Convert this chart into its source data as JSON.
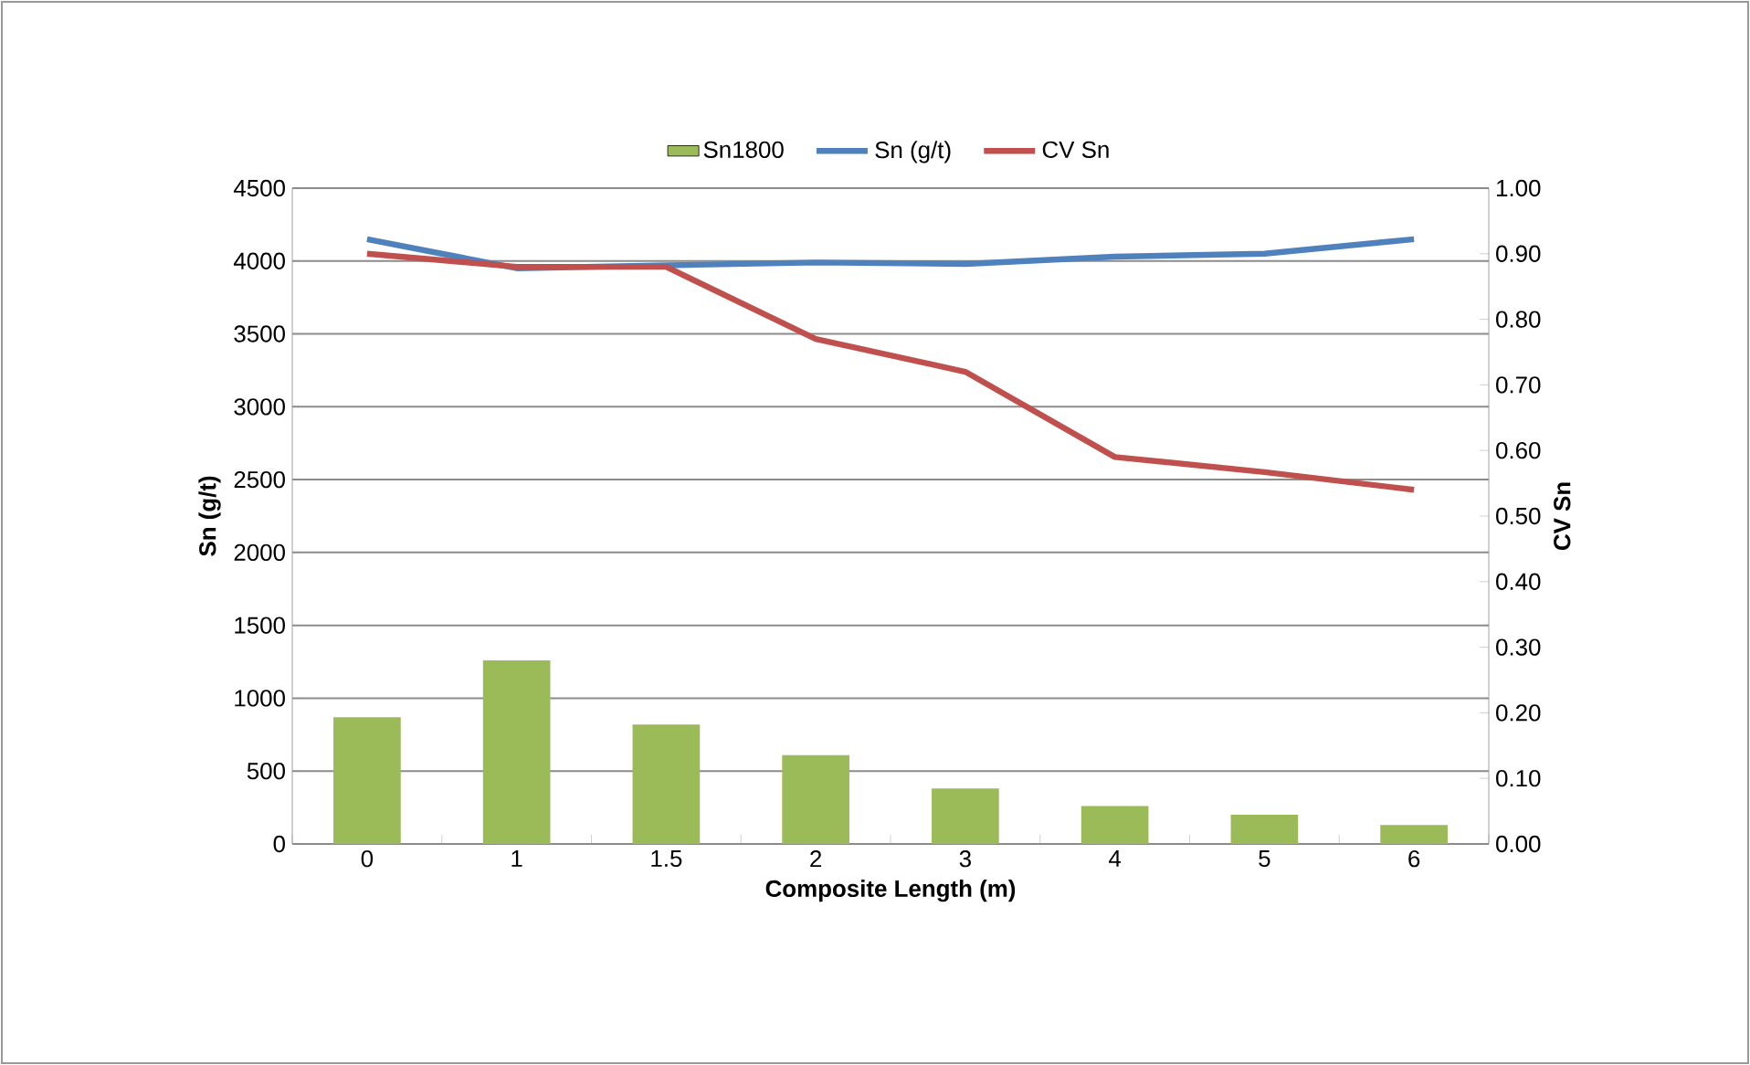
{
  "chart_data": {
    "type": "bar",
    "xlabel": "Composite Length (m)",
    "ylabel": "Sn (g/t)",
    "y2label": "CV Sn",
    "categories": [
      "0",
      "1",
      "1.5",
      "2",
      "3",
      "4",
      "5",
      "6"
    ],
    "series": [
      {
        "name": "Sn1800",
        "color": "#9bbb59",
        "values": [
          870,
          1260,
          820,
          610,
          380,
          260,
          200,
          130
        ]
      },
      {
        "name": "Sn (g/t)",
        "type": "line",
        "color": "#4f81bd",
        "values": [
          4150,
          3950,
          3970,
          3990,
          3980,
          4030,
          4050,
          4150
        ]
      },
      {
        "name": "CV Sn",
        "type": "line",
        "axis": "y2",
        "color": "#c0504d",
        "values": [
          0.9,
          0.88,
          0.88,
          0.77,
          0.72,
          0.59,
          0.567,
          0.54
        ]
      }
    ],
    "ylim": [
      0,
      4500
    ],
    "yticks": [
      0,
      500,
      1000,
      1500,
      2000,
      2500,
      3000,
      3500,
      4000,
      4500
    ],
    "y2lim": [
      0,
      1
    ],
    "y2ticks": [
      {
        "value": 0,
        "label": "0.00"
      },
      {
        "value": 0.1,
        "label": "0.10"
      },
      {
        "value": 0.2,
        "label": "0.20"
      },
      {
        "value": 0.3,
        "label": "0.30"
      },
      {
        "value": 0.4,
        "label": "0.40"
      },
      {
        "value": 0.5,
        "label": "0.50"
      },
      {
        "value": 0.6,
        "label": "0.60"
      },
      {
        "value": 0.7,
        "label": "0.70"
      },
      {
        "value": 0.8,
        "label": "0.80"
      },
      {
        "value": 0.9,
        "label": "0.90"
      },
      {
        "value": 1,
        "label": "1.00"
      }
    ],
    "grid": "y",
    "legend": "top",
    "marker": "none"
  }
}
